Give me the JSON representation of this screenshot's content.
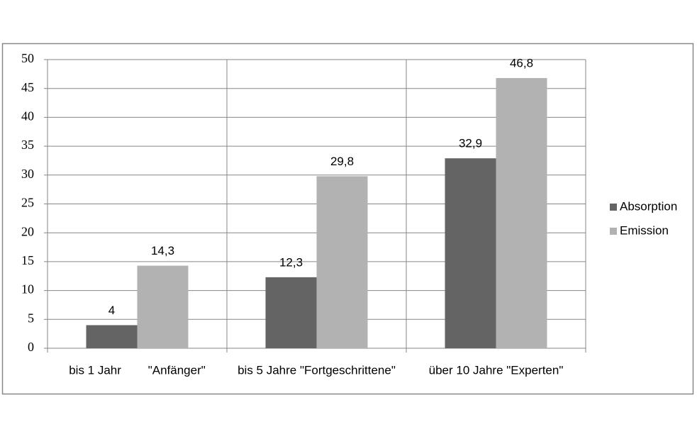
{
  "chart_data": {
    "type": "bar",
    "categories": [
      "bis 1 Jahr        \"Anfänger\"",
      "bis 5 Jahre \"Fortgeschrittene\"",
      "über 10 Jahre \"Experten\""
    ],
    "series": [
      {
        "name": "Absorption",
        "color": "#646464",
        "values": [
          4,
          12.3,
          32.9
        ],
        "value_labels": [
          "4",
          "12,3",
          "32,9"
        ]
      },
      {
        "name": "Emission",
        "color": "#b2b2b2",
        "values": [
          14.3,
          29.8,
          46.8
        ],
        "value_labels": [
          "14,3",
          "29,8",
          "46,8"
        ]
      }
    ],
    "ylim": [
      0,
      50
    ],
    "yticks": [
      0,
      5,
      10,
      15,
      20,
      25,
      30,
      35,
      40,
      45,
      50
    ],
    "grid": true,
    "legend": "right"
  }
}
